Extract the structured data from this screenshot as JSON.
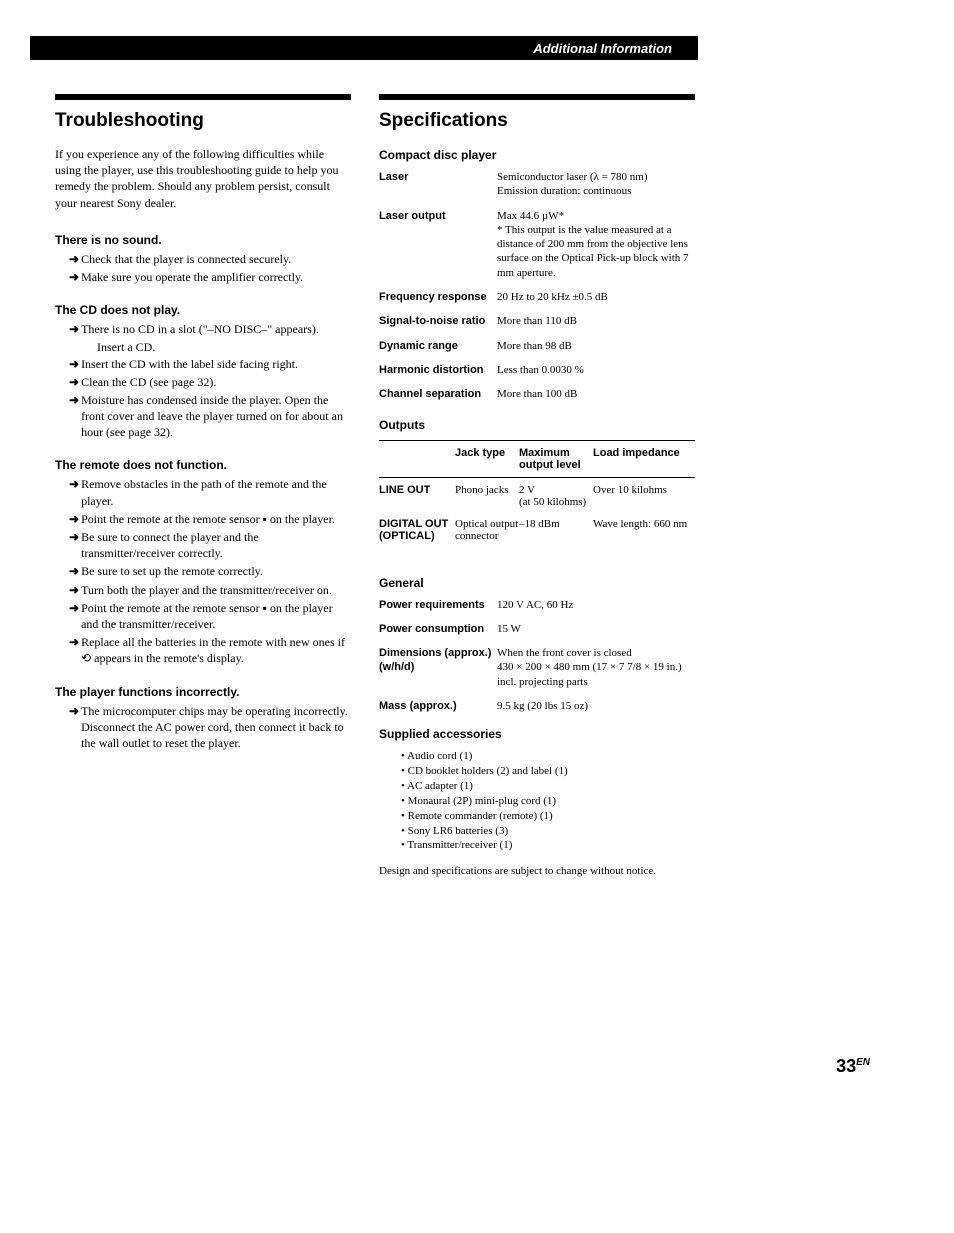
{
  "header": {
    "title": "Additional Information"
  },
  "left": {
    "heading": "Troubleshooting",
    "intro": "If you experience any of the following difficulties while using the player, use this troubleshooting guide to help you remedy the problem. Should any problem persist, consult your nearest Sony dealer.",
    "sections": [
      {
        "title": "There is no sound.",
        "items": [
          "Check that the player is connected securely.",
          "Make sure you operate the amplifier correctly."
        ]
      },
      {
        "title": "The CD does not play.",
        "items": [
          "There is no CD in a slot (\"–NO DISC–\" appears).\nInsert a CD.",
          "Insert the CD with the label side facing right.",
          "Clean the CD (see page 32).",
          "Moisture has condensed inside the player. Open the front cover and leave the player turned on for about an hour (see page 32)."
        ]
      },
      {
        "title": "The remote does not function.",
        "items": [
          "Remove obstacles in the path of the remote and the player.",
          "Point the remote at the remote sensor ▪ on the player.",
          "Be sure to connect the player and the transmitter/receiver correctly.",
          "Be sure to set up the remote correctly.",
          "Turn both the player and the transmitter/receiver on.",
          "Point the remote at the remote sensor ▪ on the player and the transmitter/receiver.",
          "Replace all the batteries in the remote with new ones if ⟲ appears in the remote's display."
        ]
      },
      {
        "title": "The player functions incorrectly.",
        "items": [
          "The microcomputer chips may be operating incorrectly. Disconnect the AC power cord, then connect it back to the wall outlet to reset the player."
        ]
      }
    ]
  },
  "right": {
    "heading": "Specifications",
    "cdp_title": "Compact disc player",
    "specs1": [
      {
        "label": "Laser",
        "value": "Semiconductor laser (λ = 780 nm)\nEmission duration: continuous"
      },
      {
        "label": "Laser output",
        "value": "Max 44.6 µW*\n* This output is the value measured at a distance of 200 mm from the objective lens surface on the Optical Pick-up block with 7 mm aperture."
      },
      {
        "label": "Frequency response",
        "value": "20 Hz to 20 kHz ±0.5 dB"
      },
      {
        "label": "Signal-to-noise ratio",
        "value": "More than 110 dB"
      },
      {
        "label": "Dynamic range",
        "value": "More than 98 dB"
      },
      {
        "label": "Harmonic distortion",
        "value": "Less than 0.0030 %"
      },
      {
        "label": "Channel separation",
        "value": "More than 100 dB"
      }
    ],
    "outputs_title": "Outputs",
    "outputs_head": [
      "",
      "Jack type",
      "Maximum output level",
      "Load impedance"
    ],
    "outputs_rows": [
      [
        "LINE OUT",
        "Phono jacks",
        "2 V\n(at 50 kilohms)",
        "Over 10 kilohms"
      ],
      [
        "DIGITAL OUT (OPTICAL)",
        "Optical output connector",
        "–18 dBm",
        "Wave length: 660 nm"
      ]
    ],
    "general_title": "General",
    "general": [
      {
        "label": "Power requirements",
        "value": "120 V AC, 60 Hz"
      },
      {
        "label": "Power consumption",
        "value": "15 W"
      },
      {
        "label": "Dimensions (approx.) (w/h/d)",
        "value": "When the front cover is closed\n430 × 200 × 480 mm (17 × 7 7/8 × 19 in.)\nincl. projecting parts"
      },
      {
        "label": "Mass (approx.)",
        "value": "9.5 kg (20 lbs 15 oz)"
      }
    ],
    "accessories_title": "Supplied accessories",
    "accessories": [
      "Audio cord (1)",
      "CD booklet holders (2) and label (1)",
      "AC adapter (1)",
      "Monaural (2P) mini-plug cord (1)",
      "Remote commander (remote) (1)",
      "Sony LR6 batteries (3)",
      "Transmitter/receiver (1)"
    ],
    "notice": "Design and specifications are subject to change without notice."
  },
  "page_number": "33",
  "page_number_suffix": "EN"
}
